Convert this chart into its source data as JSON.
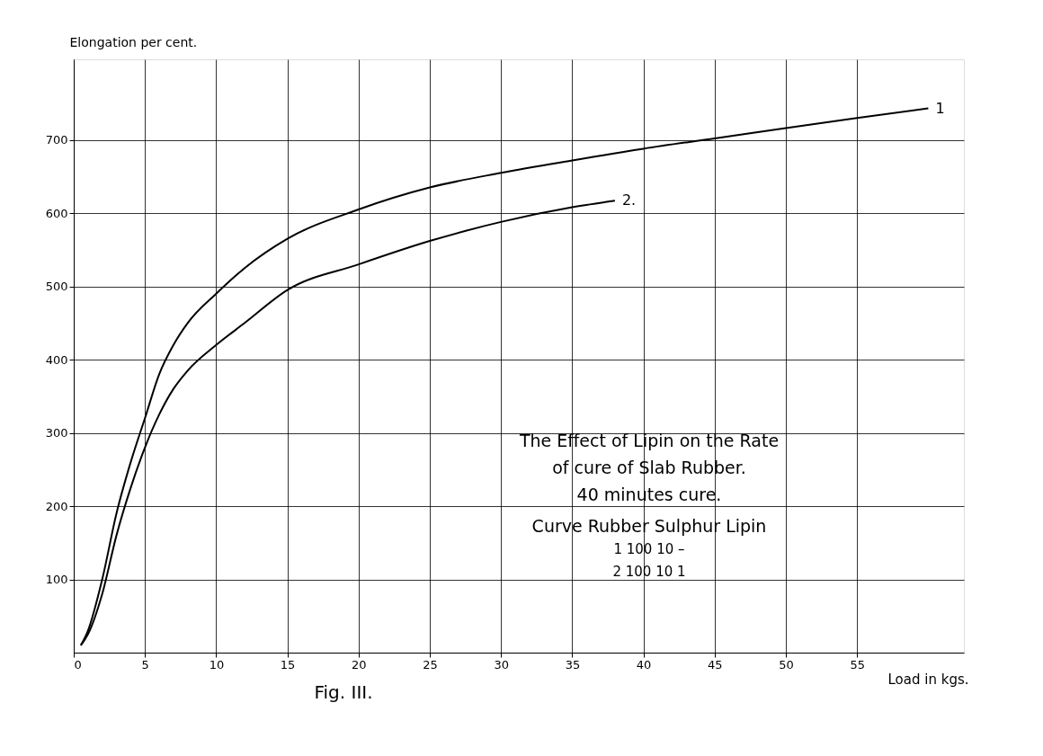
{
  "chart_data": {
    "type": "line",
    "xlabel": "Load in kgs.",
    "ylabel": "Elongation per cent.",
    "xlim": [
      0,
      62.5
    ],
    "ylim": [
      0,
      810
    ],
    "xticks": [
      0,
      5,
      10,
      15,
      20,
      25,
      30,
      35,
      40,
      45,
      50,
      55
    ],
    "yticks": [
      100,
      200,
      300,
      400,
      500,
      600,
      700
    ],
    "grid": true,
    "legend": false,
    "line_style": "solid",
    "marker": "none",
    "series": [
      {
        "name": "1",
        "color": "#000000",
        "x": [
          0.5,
          1,
          2,
          3,
          4,
          5,
          6,
          7,
          8,
          10,
          12,
          15,
          20,
          25,
          30,
          35,
          40,
          45,
          50,
          55,
          60
        ],
        "values": [
          10,
          30,
          100,
          190,
          260,
          320,
          380,
          420,
          450,
          490,
          525,
          565,
          605,
          635,
          655,
          672,
          688,
          702,
          716,
          730,
          743
        ]
      },
      {
        "name": "2.",
        "color": "#000000",
        "x": [
          0.5,
          1,
          2,
          3,
          4,
          5,
          6,
          7,
          8,
          10,
          12,
          15,
          20,
          25,
          30,
          35,
          38
        ],
        "values": [
          10,
          25,
          80,
          160,
          225,
          280,
          325,
          360,
          385,
          420,
          450,
          495,
          530,
          562,
          588,
          608,
          617
        ]
      }
    ],
    "annotations": [
      "The Effect of Lipin on the Rate",
      "of cure of Slab Rubber.",
      "40 minutes cure.",
      "Curve Rubber Sulphur Lipin",
      "1 100 10 –",
      "2 100 10 1",
      "Fig. III."
    ]
  }
}
